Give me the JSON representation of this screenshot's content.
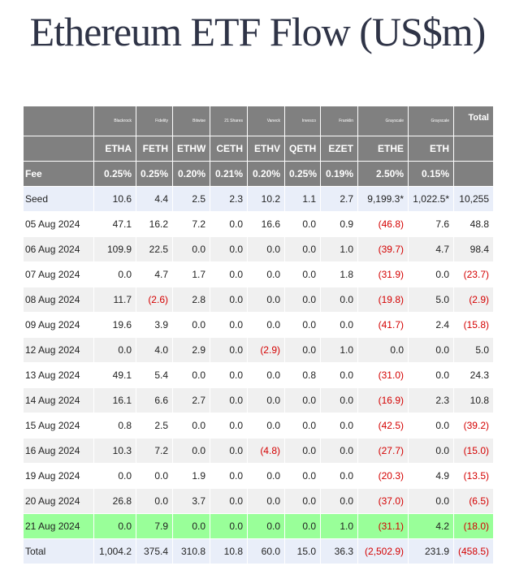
{
  "header": {
    "title": "Ethereum ETF Flow (US$m)"
  },
  "table": {
    "issuers": [
      "Blackrock",
      "Fidelity",
      "Bitwise",
      "21 Shares",
      "Vaneck",
      "Invesco",
      "Franklin",
      "Grayscale",
      "Grayscale"
    ],
    "tickers": [
      "ETHA",
      "FETH",
      "ETHW",
      "CETH",
      "ETHV",
      "QETH",
      "EZET",
      "ETHE",
      "ETH"
    ],
    "total_header": "Total",
    "fee": [
      "Fee",
      "0.25%",
      "0.25%",
      "0.20%",
      "0.21%",
      "0.20%",
      "0.25%",
      "0.19%",
      "2.50%",
      "0.15%"
    ],
    "rows": [
      [
        "Seed",
        "10.6",
        "4.4",
        "2.5",
        "2.3",
        "10.2",
        "1.1",
        "2.7",
        "9,199.3*",
        "1,022.5*",
        "10,255"
      ],
      [
        "05 Aug 2024",
        "47.1",
        "16.2",
        "7.2",
        "0.0",
        "16.6",
        "0.0",
        "0.9",
        "(46.8)",
        "7.6",
        "48.8"
      ],
      [
        "06 Aug 2024",
        "109.9",
        "22.5",
        "0.0",
        "0.0",
        "0.0",
        "0.0",
        "1.0",
        "(39.7)",
        "4.7",
        "98.4"
      ],
      [
        "07 Aug 2024",
        "0.0",
        "4.7",
        "1.7",
        "0.0",
        "0.0",
        "0.0",
        "1.8",
        "(31.9)",
        "0.0",
        "(23.7)"
      ],
      [
        "08 Aug 2024",
        "11.7",
        "(2.6)",
        "2.8",
        "0.0",
        "0.0",
        "0.0",
        "0.0",
        "(19.8)",
        "5.0",
        "(2.9)"
      ],
      [
        "09 Aug 2024",
        "19.6",
        "3.9",
        "0.0",
        "0.0",
        "0.0",
        "0.0",
        "0.0",
        "(41.7)",
        "2.4",
        "(15.8)"
      ],
      [
        "12 Aug 2024",
        "0.0",
        "4.0",
        "2.9",
        "0.0",
        "(2.9)",
        "0.0",
        "1.0",
        "0.0",
        "0.0",
        "5.0"
      ],
      [
        "13 Aug 2024",
        "49.1",
        "5.4",
        "0.0",
        "0.0",
        "0.0",
        "0.8",
        "0.0",
        "(31.0)",
        "0.0",
        "24.3"
      ],
      [
        "14 Aug 2024",
        "16.1",
        "6.6",
        "2.7",
        "0.0",
        "0.0",
        "0.0",
        "0.0",
        "(16.9)",
        "2.3",
        "10.8"
      ],
      [
        "15 Aug 2024",
        "0.8",
        "2.5",
        "0.0",
        "0.0",
        "0.0",
        "0.0",
        "0.0",
        "(42.5)",
        "0.0",
        "(39.2)"
      ],
      [
        "16 Aug 2024",
        "10.3",
        "7.2",
        "0.0",
        "0.0",
        "(4.8)",
        "0.0",
        "0.0",
        "(27.7)",
        "0.0",
        "(15.0)"
      ],
      [
        "19 Aug 2024",
        "0.0",
        "0.0",
        "1.9",
        "0.0",
        "0.0",
        "0.0",
        "0.0",
        "(20.3)",
        "4.9",
        "(13.5)"
      ],
      [
        "20 Aug 2024",
        "26.8",
        "0.0",
        "3.7",
        "0.0",
        "0.0",
        "0.0",
        "0.0",
        "(37.0)",
        "0.0",
        "(6.5)"
      ],
      [
        "21 Aug 2024",
        "0.0",
        "7.9",
        "0.0",
        "0.0",
        "0.0",
        "0.0",
        "1.0",
        "(31.1)",
        "4.2",
        "(18.0)"
      ],
      [
        "Total",
        "1,004.2",
        "375.4",
        "310.8",
        "10.8",
        "60.0",
        "15.0",
        "36.3",
        "(2,502.9)",
        "231.9",
        "(458.5)"
      ]
    ]
  }
}
